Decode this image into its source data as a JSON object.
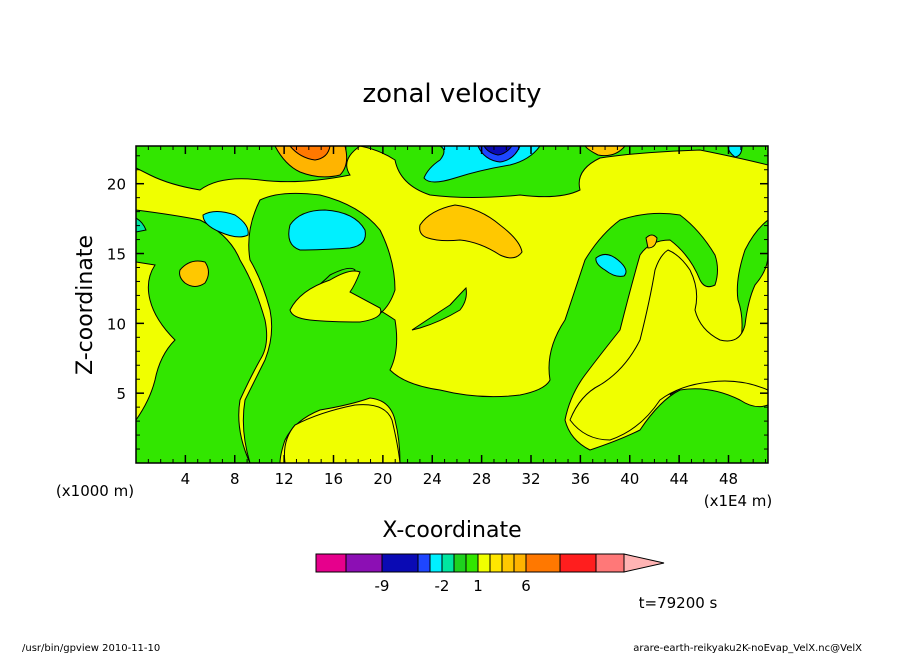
{
  "chart_data": {
    "type": "heatmap",
    "title": "zonal velocity",
    "xlabel": "X-coordinate",
    "ylabel": "Z-coordinate",
    "x_ticks": [
      "4",
      "8",
      "12",
      "16",
      "20",
      "24",
      "28",
      "32",
      "36",
      "40",
      "44",
      "48"
    ],
    "x_tick_values": [
      4,
      8,
      12,
      16,
      20,
      24,
      28,
      32,
      36,
      40,
      44,
      48
    ],
    "y_ticks": [
      "5",
      "10",
      "15",
      "20"
    ],
    "y_tick_values": [
      5,
      10,
      15,
      20
    ],
    "xlim": [
      0,
      51.2
    ],
    "ylim": [
      0,
      22.7
    ],
    "x_unit_label": "(x1E4 m)",
    "y_unit_label": "(x1000 m)",
    "colorbar": {
      "colors": [
        "#e6008c",
        "#8c0fb4",
        "#0a0ab4",
        "#1e46ff",
        "#00f0ff",
        "#00e6a0",
        "#1ed21e",
        "#32e600",
        "#f0ff00",
        "#ffe600",
        "#ffc800",
        "#ffb400",
        "#ff7800",
        "#ff1e1e",
        "#ff7878",
        "#ffb4b4"
      ],
      "tick_labels": [
        "-9",
        "-2",
        "1",
        "6"
      ]
    },
    "time_label": "t=79200 s",
    "footer_left": "/usr/bin/gpview   2010-11-10",
    "footer_right": "arare-earth-reikyaku2K-noEvap_VelX.nc@VelX"
  }
}
